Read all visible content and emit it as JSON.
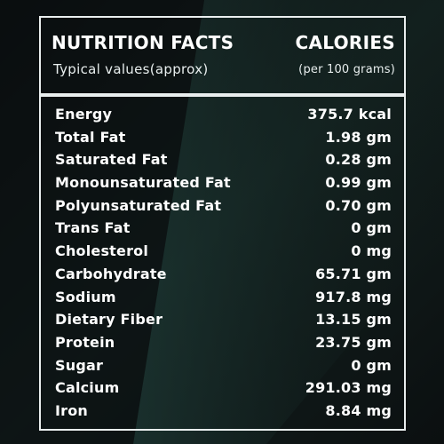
{
  "header": {
    "title": "NUTRITION FACTS",
    "subtitle": "Typical values(approx)",
    "calories_label": "CALORIES",
    "per_label": "(per 100 grams)"
  },
  "rows": [
    {
      "label": "Energy",
      "value": "375.7 kcal"
    },
    {
      "label": "Total Fat",
      "value": "1.98 gm"
    },
    {
      "label": "Saturated Fat",
      "value": "0.28 gm"
    },
    {
      "label": "Monounsaturated Fat",
      "value": "0.99 gm"
    },
    {
      "label": "Polyunsaturated Fat",
      "value": "0.70 gm"
    },
    {
      "label": "Trans Fat",
      "value": "0 gm"
    },
    {
      "label": "Cholesterol",
      "value": "0 mg"
    },
    {
      "label": "Carbohydrate",
      "value": "65.71 gm"
    },
    {
      "label": "Sodium",
      "value": "917.8 mg"
    },
    {
      "label": "Dietary Fiber",
      "value": "13.15 gm"
    },
    {
      "label": "Protein",
      "value": "23.75 gm"
    },
    {
      "label": "Sugar",
      "value": "0 gm"
    },
    {
      "label": "Calcium",
      "value": "291.03 mg"
    },
    {
      "label": "Iron",
      "value": "8.84 mg"
    }
  ],
  "colors": {
    "background_dark": "#0d1213",
    "background_teal": "#1d3a37",
    "border": "#e9eeee",
    "text": "#ffffff"
  }
}
